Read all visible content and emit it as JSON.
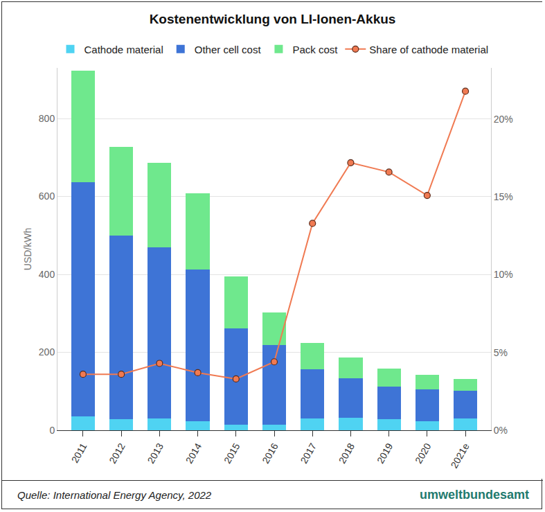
{
  "chart_data": {
    "type": "bar",
    "title": "Kostenentwicklung von LI-Ionen-Akkus",
    "y_label": "USD/kWh",
    "annotations": [
      "Quelle: International Energy Agency, 2022",
      "umweltbundesamt"
    ],
    "categories": [
      "2011",
      "2012",
      "2013",
      "2014",
      "2015",
      "2016",
      "2017",
      "2018",
      "2019",
      "2020",
      "2021e"
    ],
    "stacked": true,
    "grid": true,
    "legend": "top",
    "ylim": [
      0,
      930
    ],
    "yticks": [
      0,
      200,
      400,
      600,
      800
    ],
    "y2lim": [
      0,
      23.3
    ],
    "y2ticks": [
      {
        "value": 0,
        "label": "0%"
      },
      {
        "value": 5,
        "label": "5%"
      },
      {
        "value": 10,
        "label": "10%"
      },
      {
        "value": 15,
        "label": "15%"
      },
      {
        "value": 20,
        "label": "20%"
      }
    ],
    "series": [
      {
        "name": "Cathode material",
        "type": "bar",
        "color": "#4fd3f2",
        "values": [
          36,
          28,
          30,
          23,
          14,
          14,
          30,
          32,
          28,
          23,
          30
        ]
      },
      {
        "name": "Other cell cost",
        "type": "bar",
        "color": "#3e74d6",
        "values": [
          600,
          471,
          440,
          390,
          248,
          205,
          127,
          102,
          84,
          82,
          71
        ]
      },
      {
        "name": "Pack cost",
        "type": "bar",
        "color": "#6fe88d",
        "values": [
          287,
          228,
          216,
          195,
          132,
          84,
          67,
          53,
          47,
          37,
          31
        ]
      },
      {
        "name": "Share of cathode material",
        "type": "line",
        "axis": "y2",
        "color": "#f07a52",
        "marker": "circle",
        "values": [
          3.6,
          3.6,
          4.3,
          3.7,
          3.3,
          4.4,
          13.3,
          17.2,
          16.6,
          15.1,
          21.8
        ]
      }
    ]
  }
}
